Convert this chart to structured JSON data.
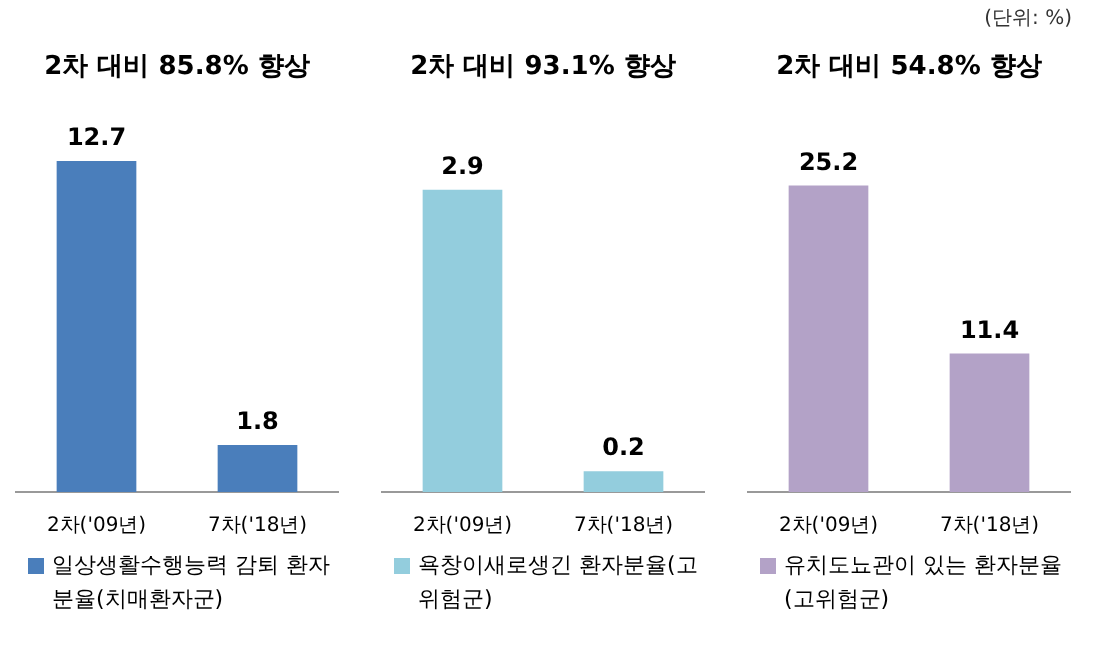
{
  "chart_data": [
    {
      "type": "bar",
      "title": "2차 대비 85.8% 향상",
      "categories": [
        "2차('09년)",
        "7차('18년)"
      ],
      "series": [
        {
          "name": "일상생활수행능력 감퇴 환자분율(치매환자군)",
          "color": "#4a7ebb",
          "values": [
            12.7,
            1.8
          ]
        }
      ],
      "data_labels": true,
      "legend": "bottom"
    },
    {
      "type": "bar",
      "title": "2차 대비 93.1% 향상",
      "categories": [
        "2차('09년)",
        "7차('18년)"
      ],
      "series": [
        {
          "name": "욕창이새로생긴 환자분율(고위험군)",
          "color": "#93cddd",
          "values": [
            2.9,
            0.2
          ]
        }
      ],
      "data_labels": true,
      "legend": "bottom"
    },
    {
      "type": "bar",
      "title": "2차 대비 54.8% 향상",
      "categories": [
        "2차('09년)",
        "7차('18년)"
      ],
      "series": [
        {
          "name": "유치도뇨관이 있는 환자분율(고위험군)",
          "color": "#b3a2c7",
          "values": [
            25.2,
            11.4
          ]
        }
      ],
      "data_labels": true,
      "legend": "bottom",
      "annotations": [
        "(단위: %)"
      ]
    }
  ]
}
